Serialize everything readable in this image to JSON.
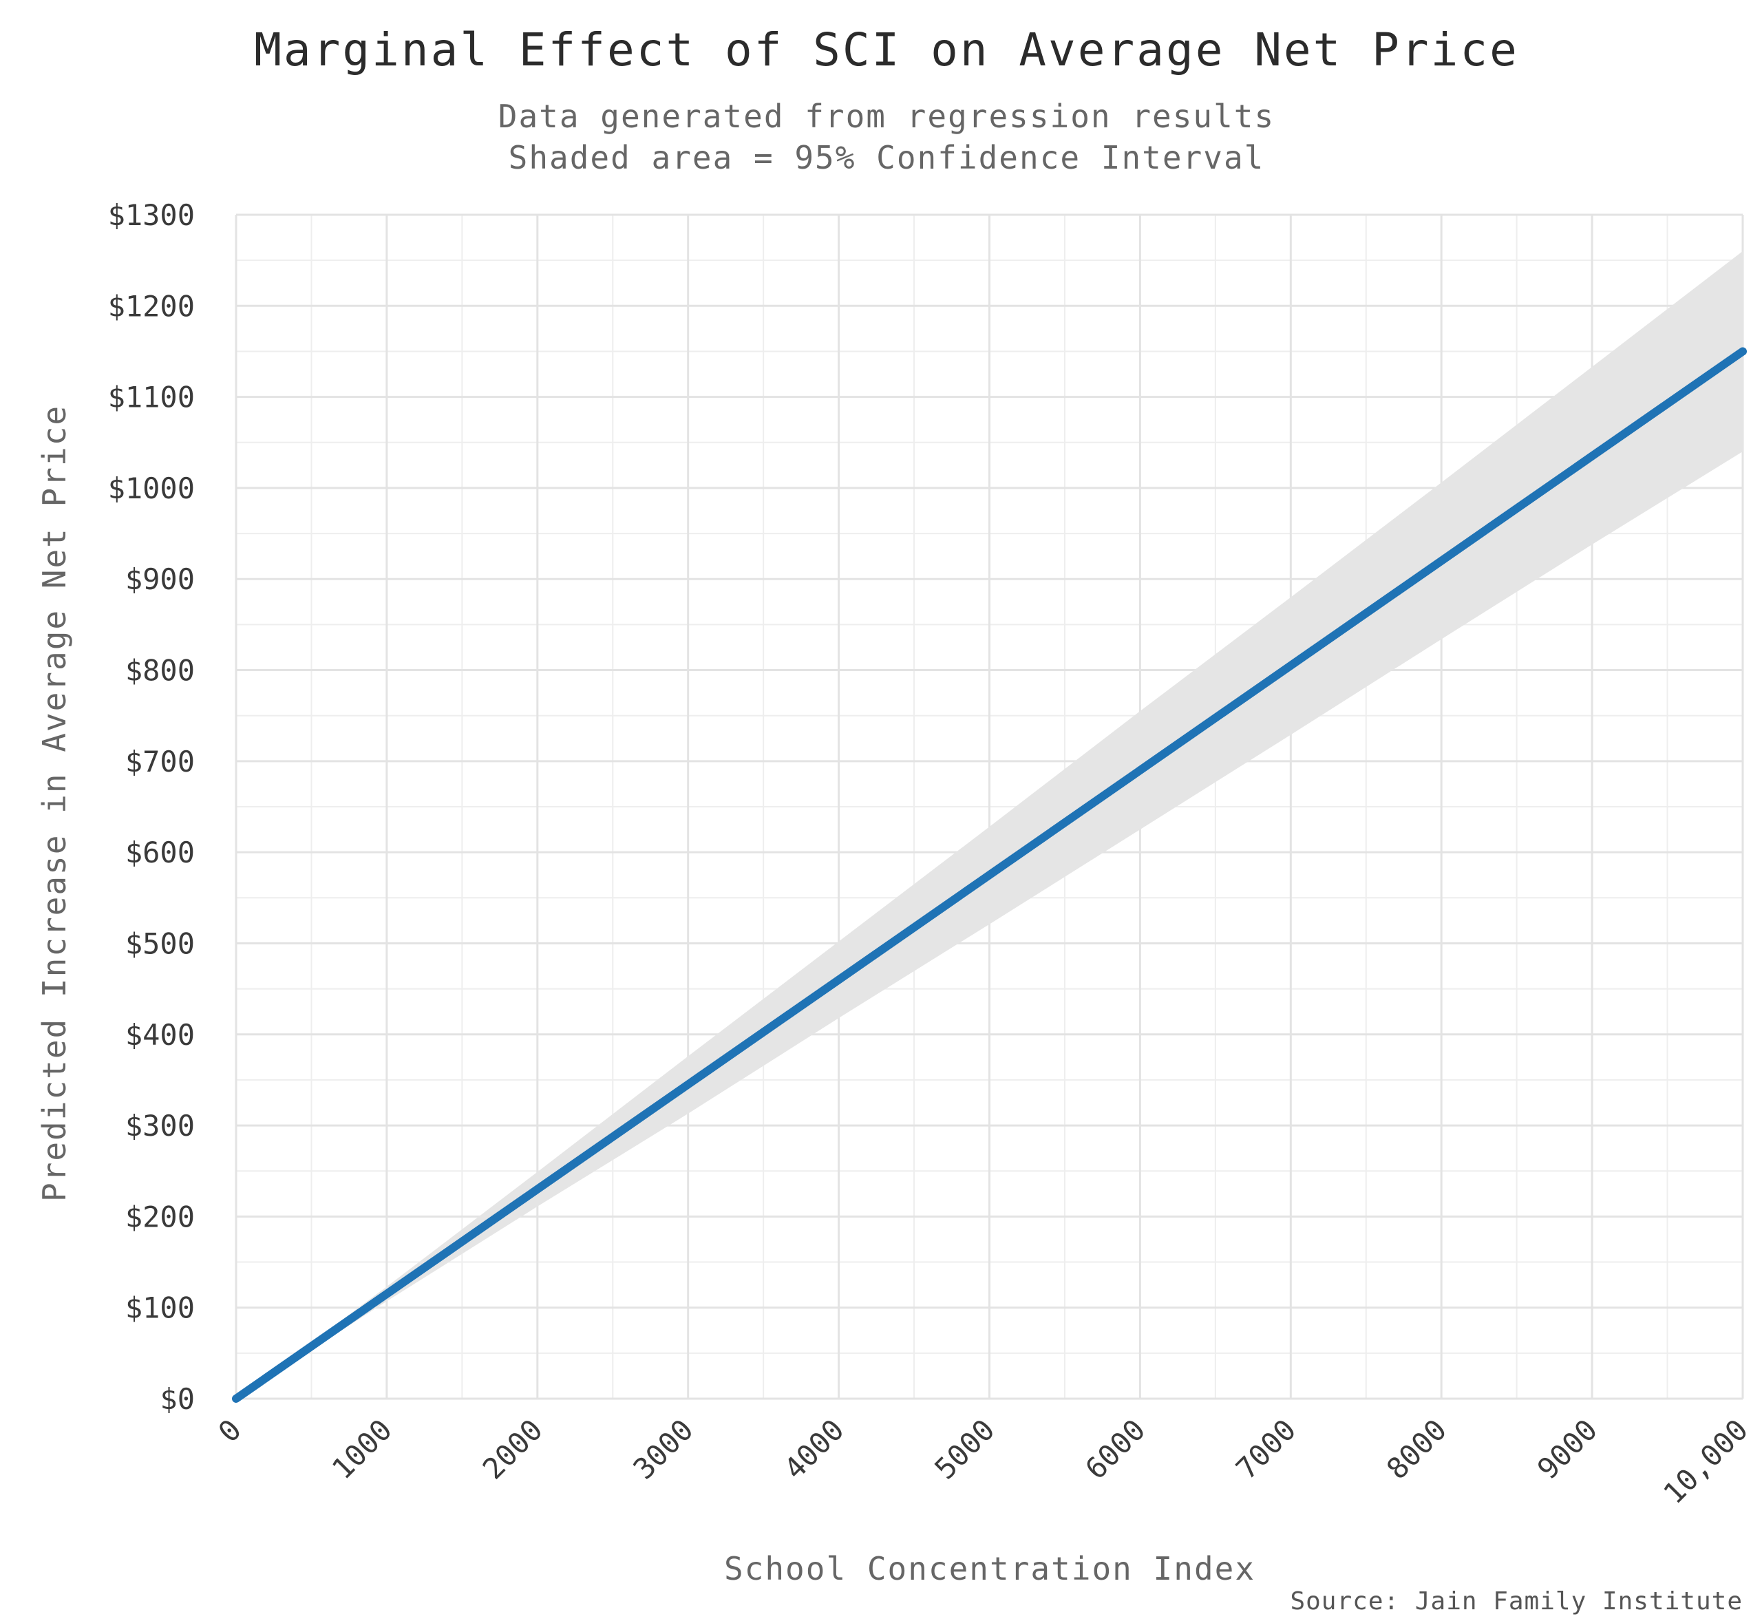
{
  "chart_data": {
    "type": "line",
    "title": "Marginal Effect of SCI on Average Net Price",
    "subtitle_lines": [
      "Data generated from regression results",
      "Shaded area = 95% Confidence Interval"
    ],
    "xlabel": "School Concentration Index",
    "ylabel": "Predicted Increase in Average Net Price",
    "source": "Source: Jain Family Institute",
    "xlim": [
      0,
      10000
    ],
    "ylim": [
      0,
      1300
    ],
    "x_ticks": [
      0,
      1000,
      2000,
      3000,
      4000,
      5000,
      6000,
      7000,
      8000,
      9000,
      10000
    ],
    "x_tick_labels": [
      "0",
      "1000",
      "2000",
      "3000",
      "4000",
      "5000",
      "6000",
      "7000",
      "8000",
      "9000",
      "10,000"
    ],
    "y_ticks": [
      0,
      100,
      200,
      300,
      400,
      500,
      600,
      700,
      800,
      900,
      1000,
      1100,
      1200,
      1300
    ],
    "y_tick_labels": [
      "$0",
      "$100",
      "$200",
      "$300",
      "$400",
      "$500",
      "$600",
      "$700",
      "$800",
      "$900",
      "$1000",
      "$1100",
      "$1200",
      "$1300"
    ],
    "grid": true,
    "series": [
      {
        "x": [
          0,
          1000,
          2000,
          3000,
          4000,
          5000,
          6000,
          7000,
          8000,
          9000,
          10000
        ],
        "values": [
          0,
          115,
          230,
          345,
          460,
          575,
          690,
          805,
          920,
          1035,
          1150
        ],
        "ci_lower": [
          0,
          107,
          211,
          313,
          418,
          521,
          625,
          729,
          834,
          938,
          1040
        ],
        "ci_upper": [
          0,
          123,
          249,
          376,
          502,
          628,
          755,
          880,
          1006,
          1133,
          1260
        ]
      }
    ],
    "colors": {
      "line": "#1f73b5",
      "band": "#e5e5e5",
      "grid": "#e3e3e3",
      "grid_minor": "#eeeeee"
    }
  }
}
